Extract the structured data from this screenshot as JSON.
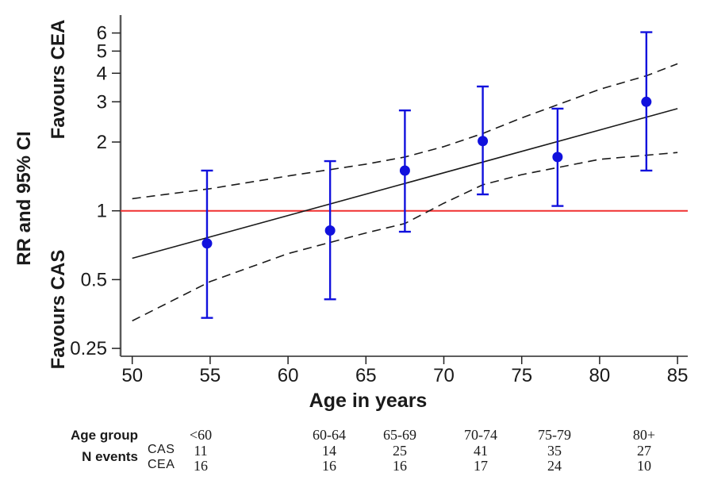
{
  "chart_data": {
    "type": "scatter",
    "title": "",
    "xlabel": "Age in years",
    "ylabel": "RR and 95% CI",
    "favours_top": "Favours  CEA",
    "favours_bottom": "Favours CAS",
    "x_ticks": [
      50,
      55,
      60,
      65,
      70,
      75,
      80,
      85
    ],
    "y_ticks": [
      6,
      5,
      4,
      3,
      2,
      1,
      0.5,
      0.25
    ],
    "y_scale": "log",
    "xlim": [
      49.3,
      85.7
    ],
    "ylim": [
      0.22,
      7.2
    ],
    "grid": false,
    "legend": false,
    "reference_line": {
      "rr": 1,
      "color": "#f03030"
    },
    "points": {
      "color": "#1111dd",
      "data": [
        {
          "age": 54.8,
          "rr": 0.72,
          "ci_low": 0.34,
          "ci_high": 1.5
        },
        {
          "age": 62.7,
          "rr": 0.82,
          "ci_low": 0.41,
          "ci_high": 1.65
        },
        {
          "age": 67.5,
          "rr": 1.5,
          "ci_low": 0.81,
          "ci_high": 2.75
        },
        {
          "age": 72.5,
          "rr": 2.02,
          "ci_low": 1.18,
          "ci_high": 3.5
        },
        {
          "age": 77.3,
          "rr": 1.72,
          "ci_low": 1.05,
          "ci_high": 2.8
        },
        {
          "age": 83.0,
          "rr": 3.0,
          "ci_low": 1.5,
          "ci_high": 6.05
        }
      ]
    },
    "regression_line": {
      "style": "solid",
      "points": [
        {
          "age": 50,
          "rr": 0.62
        },
        {
          "age": 85,
          "rr": 2.8
        }
      ]
    },
    "ci_band_upper": {
      "style": "dashed",
      "points": [
        {
          "age": 50,
          "rr": 1.13
        },
        {
          "age": 55,
          "rr": 1.25
        },
        {
          "age": 60,
          "rr": 1.42
        },
        {
          "age": 65,
          "rr": 1.6
        },
        {
          "age": 67.5,
          "rr": 1.72
        },
        {
          "age": 70,
          "rr": 1.91
        },
        {
          "age": 72.5,
          "rr": 2.18
        },
        {
          "age": 75,
          "rr": 2.55
        },
        {
          "age": 80,
          "rr": 3.4
        },
        {
          "age": 83,
          "rr": 3.9
        },
        {
          "age": 85,
          "rr": 4.4
        }
      ]
    },
    "ci_band_lower": {
      "style": "dashed",
      "points": [
        {
          "age": 50,
          "rr": 0.33
        },
        {
          "age": 55,
          "rr": 0.49
        },
        {
          "age": 60,
          "rr": 0.65
        },
        {
          "age": 65,
          "rr": 0.8
        },
        {
          "age": 67.5,
          "rr": 0.88
        },
        {
          "age": 70,
          "rr": 1.08
        },
        {
          "age": 72.5,
          "rr": 1.3
        },
        {
          "age": 75,
          "rr": 1.44
        },
        {
          "age": 80,
          "rr": 1.68
        },
        {
          "age": 85,
          "rr": 1.8
        }
      ]
    }
  },
  "table": {
    "age_group_label": "Age group",
    "n_events_label": "N events",
    "row_labels": [
      "CAS",
      "CEA"
    ],
    "age_groups": [
      "<60",
      "60-64",
      "65-69",
      "70-74",
      "75-79",
      "80+"
    ],
    "cas_values": [
      11,
      14,
      25,
      41,
      35,
      27
    ],
    "cea_values": [
      16,
      16,
      16,
      17,
      24,
      10
    ]
  }
}
